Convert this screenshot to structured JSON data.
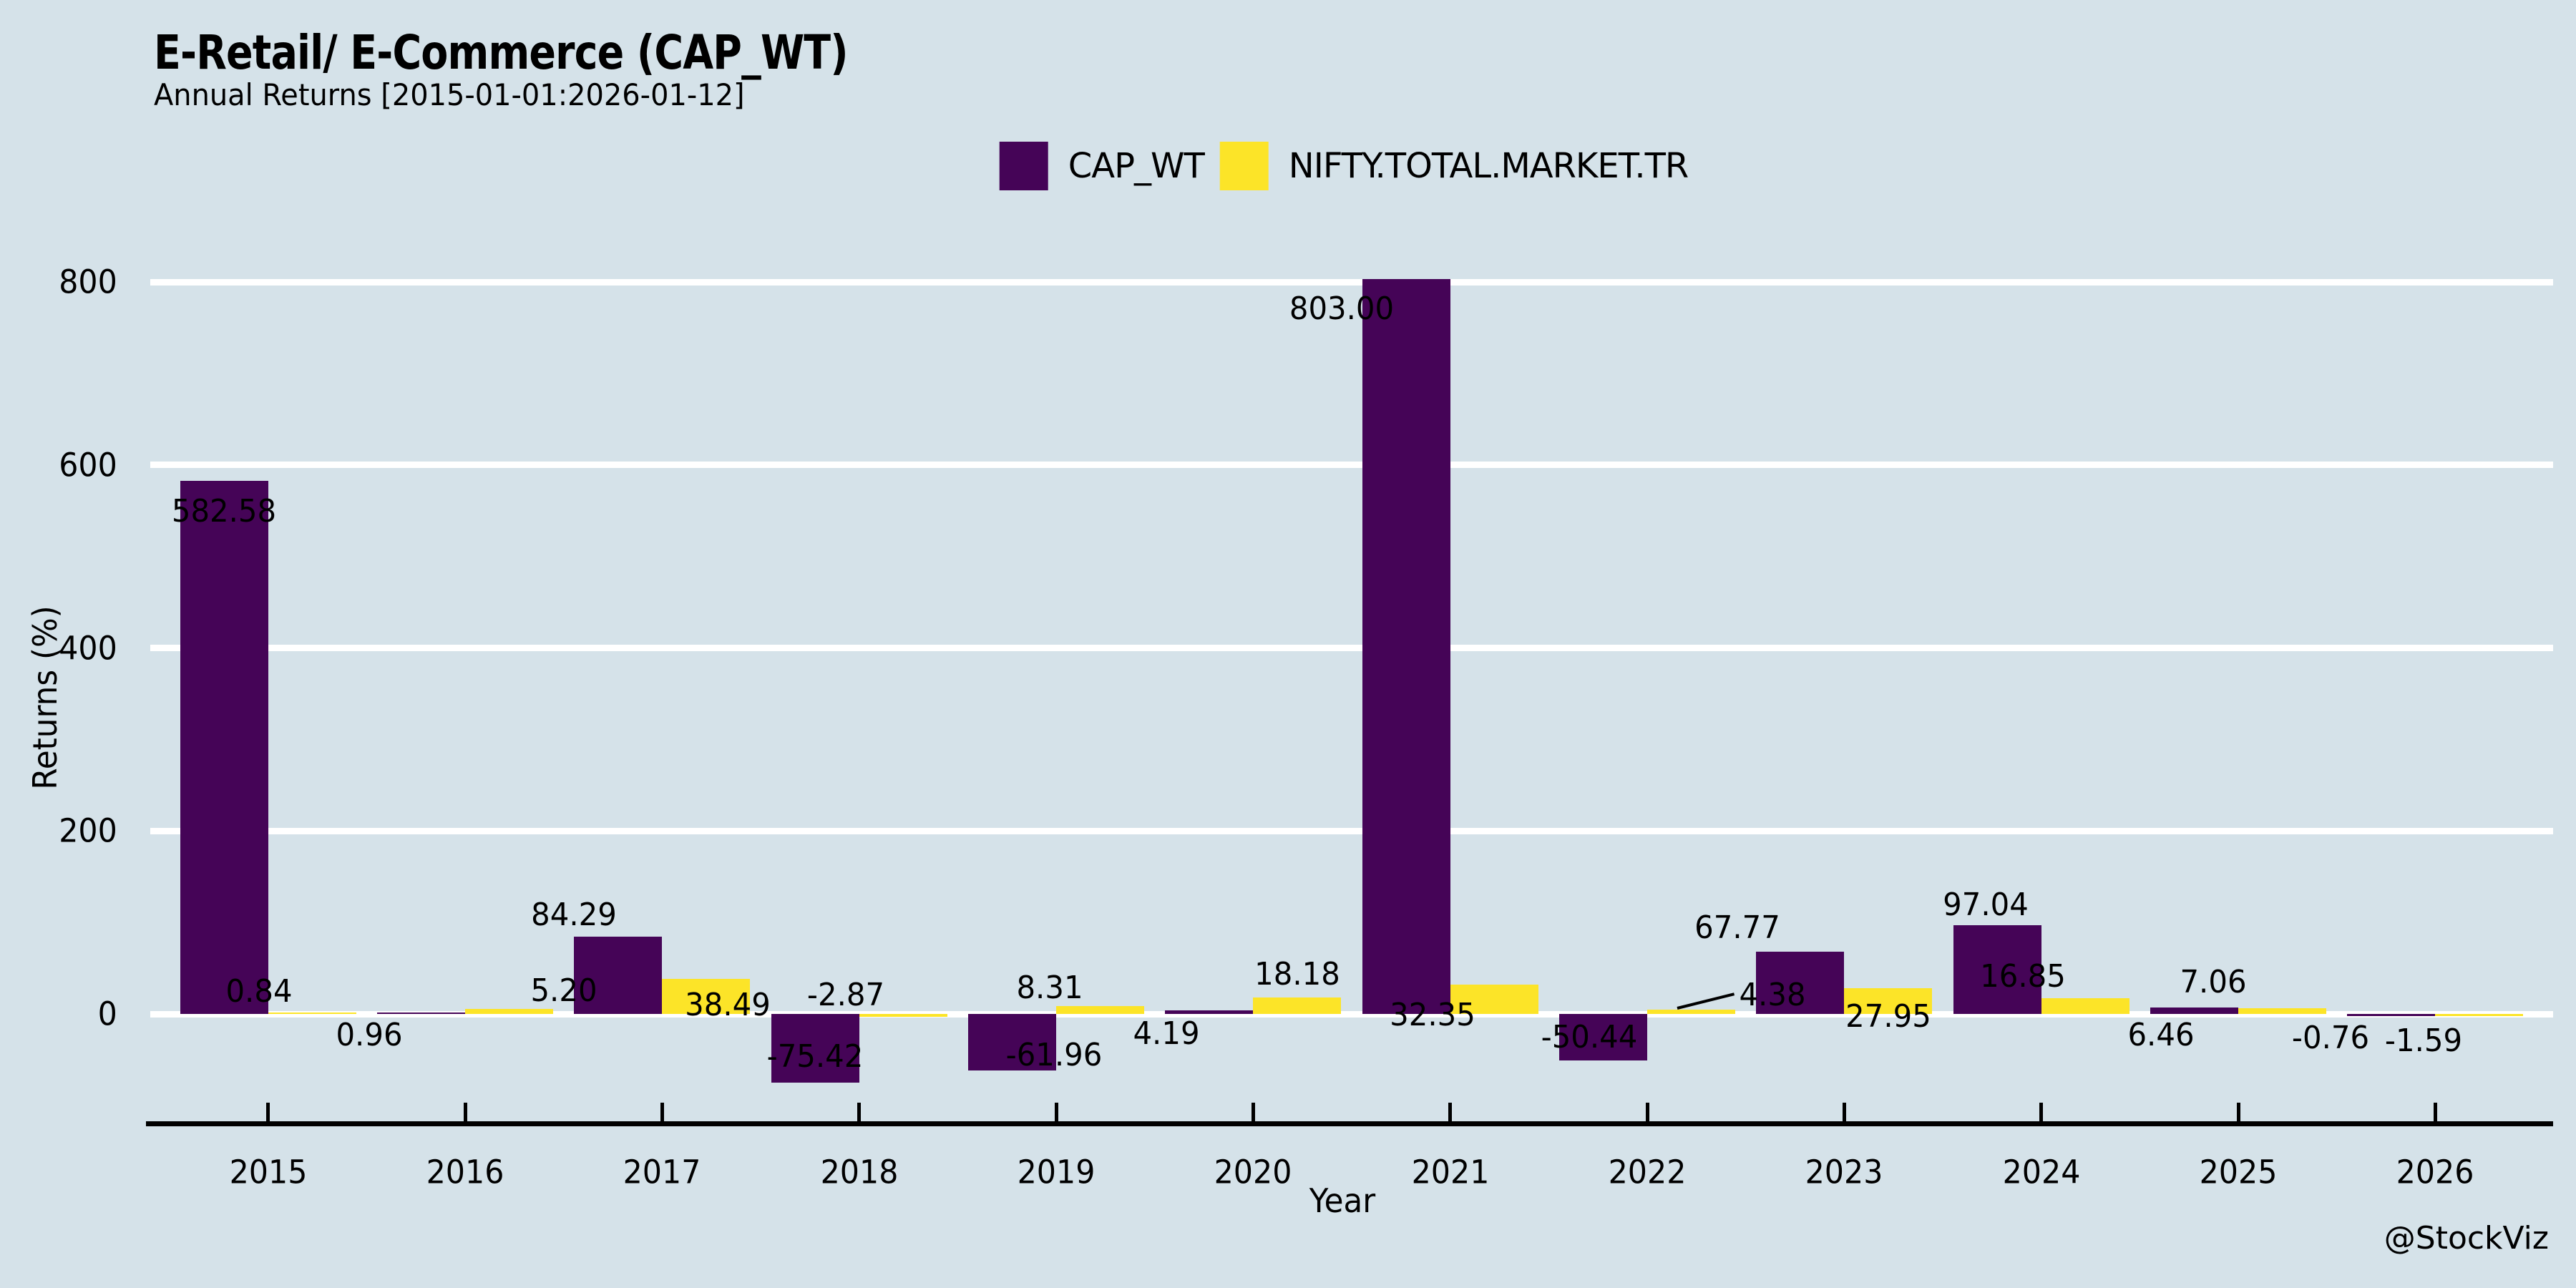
{
  "watermark": "@StockViz",
  "chart_data": {
    "type": "bar",
    "title": "E-Retail/ E-Commerce (CAP_WT)",
    "subtitle": "Annual Returns [2015-01-01:2026-01-12]",
    "xlabel": "Year",
    "ylabel": "Returns (%)",
    "categories": [
      "2015",
      "2016",
      "2017",
      "2018",
      "2019",
      "2020",
      "2021",
      "2022",
      "2023",
      "2024",
      "2025",
      "2026"
    ],
    "series": [
      {
        "name": "CAP_WT",
        "color": "#450457",
        "values": [
          582.58,
          0.96,
          84.29,
          -75.42,
          -61.96,
          4.19,
          803.0,
          -50.44,
          67.77,
          97.04,
          7.06,
          -0.76
        ]
      },
      {
        "name": "NIFTY.TOTAL.MARKET.TR",
        "color": "#fce428",
        "values": [
          0.84,
          5.2,
          38.49,
          -2.87,
          8.31,
          18.18,
          32.35,
          4.38,
          27.95,
          16.85,
          6.46,
          -1.59
        ]
      }
    ],
    "value_label_decimals": 2,
    "yticks": [
      0,
      200,
      400,
      600,
      800
    ],
    "ylim": [
      -120,
      820
    ],
    "grid": "horizontal-major-white",
    "legend_position": "top-center",
    "annotation_leader_line": {
      "series": "NIFTY.TOTAL.MARKET.TR",
      "category": "2022"
    },
    "colors": {
      "background": "#d5e2e9",
      "grid": "#ffffff",
      "axis": "#000000",
      "text": "#000000"
    }
  }
}
